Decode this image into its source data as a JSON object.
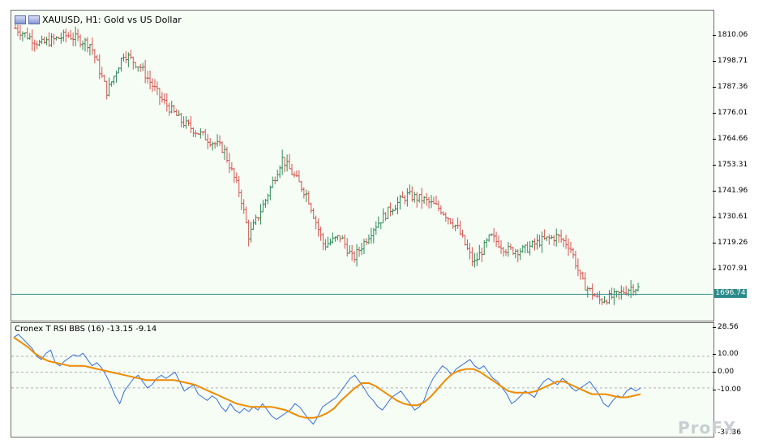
{
  "window": {
    "title": "XAUUSD, H1:  Gold vs US Dollar"
  },
  "indicator": {
    "label": "Cronex T RSI BBS (16) -13.15 -9.14"
  },
  "price_axis": {
    "ticks": [
      "1810.06",
      "1798.71",
      "1787.36",
      "1776.01",
      "1764.66",
      "1753.31",
      "1741.96",
      "1730.61",
      "1719.26",
      "1707.91"
    ],
    "current_price": "1696.74"
  },
  "indicator_axis": {
    "ticks": [
      "28.56",
      "10.00",
      "0.00",
      "-10.00",
      "-37.36"
    ]
  },
  "watermark": {
    "text": "ProFX"
  },
  "colors": {
    "bull_bar": "#2e8b57",
    "bear_bar": "#d9534f",
    "rsi_line": "#3a6fd8",
    "signal_line": "#f08a00",
    "current_price_line": "#2b8a8a",
    "background": "#f5fdf5"
  },
  "chart_data": [
    {
      "type": "candlestick",
      "title": "XAUUSD, H1:  Gold vs US Dollar",
      "ylim": [
        1692,
        1815
      ],
      "current_price": 1696.74,
      "ohlc": []
    },
    {
      "type": "line",
      "title": "Cronex T RSI BBS (16)",
      "ylim": [
        -37.36,
        28.56
      ],
      "levels": [
        10.0,
        0.0,
        -10.0
      ],
      "series": [
        {
          "values": [
            22,
            24,
            21,
            18,
            15,
            10,
            8,
            12,
            14,
            6,
            4,
            7,
            9,
            11,
            10,
            12,
            8,
            4,
            6,
            3,
            -2,
            -8,
            -15,
            -20,
            -12,
            -8,
            -4,
            -2,
            -6,
            -10,
            -8,
            -4,
            -2,
            -4,
            -2,
            0,
            -6,
            -12,
            -10,
            -8,
            -14,
            -16,
            -18,
            -15,
            -17,
            -22,
            -25,
            -20,
            -24,
            -26,
            -23,
            -25,
            -22,
            -24,
            -20,
            -24,
            -28,
            -30,
            -28,
            -26,
            -24,
            -20,
            -22,
            -26,
            -30,
            -33,
            -28,
            -22,
            -20,
            -18,
            -16,
            -12,
            -8,
            -4,
            -2,
            -6,
            -10,
            -15,
            -18,
            -22,
            -24,
            -20,
            -16,
            -14,
            -12,
            -16,
            -20,
            -24,
            -22,
            -18,
            -10,
            -4,
            0,
            4,
            2,
            -2,
            2,
            4,
            6,
            8,
            4,
            2,
            4,
            0,
            -4,
            -6,
            -10,
            -14,
            -20,
            -18,
            -15,
            -12,
            -14,
            -16,
            -10,
            -6,
            -4,
            -6,
            -8,
            -4,
            -6,
            -10,
            -12,
            -10,
            -8,
            -6,
            -10,
            -14,
            -20,
            -22,
            -18,
            -15,
            -16,
            -12,
            -10,
            -12,
            -10
          ]
        },
        {
          "values": [
            22,
            19,
            16,
            12,
            9,
            7,
            6,
            5,
            4,
            4,
            4,
            3,
            2,
            1,
            0,
            -1,
            -2,
            -3,
            -4,
            -5,
            -5,
            -5,
            -5,
            -5,
            -6,
            -7,
            -8,
            -10,
            -12,
            -14,
            -16,
            -18,
            -20,
            -21,
            -22,
            -22,
            -22,
            -22,
            -23,
            -24,
            -26,
            -28,
            -29,
            -29,
            -28,
            -26,
            -23,
            -18,
            -14,
            -10,
            -7,
            -7,
            -9,
            -12,
            -15,
            -18,
            -20,
            -21,
            -21,
            -19,
            -15,
            -10,
            -5,
            -1,
            1,
            2,
            2,
            0,
            -3,
            -6,
            -9,
            -12,
            -13,
            -13,
            -13,
            -12,
            -10,
            -8,
            -6,
            -6,
            -8,
            -10,
            -12,
            -14,
            -14,
            -14,
            -15,
            -16,
            -16,
            -15,
            -14
          ]
        }
      ]
    }
  ]
}
